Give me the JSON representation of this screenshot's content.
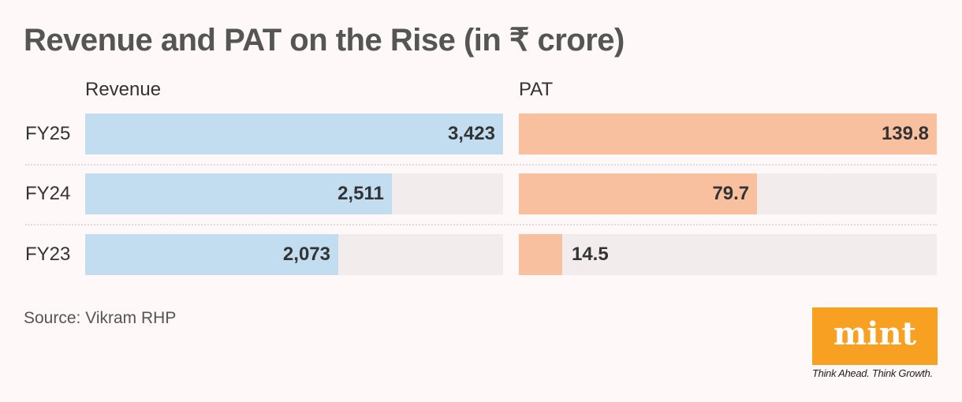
{
  "chart_data": {
    "type": "bar",
    "orientation": "horizontal",
    "title": "Revenue and PAT on the Rise (in ₹ crore)",
    "categories": [
      "FY25",
      "FY24",
      "FY23"
    ],
    "series": [
      {
        "name": "Revenue",
        "values": [
          3423,
          2511,
          2073
        ],
        "labels": [
          "3,423",
          "2,511",
          "2,073"
        ],
        "color": "#c2ddef"
      },
      {
        "name": "PAT",
        "values": [
          139.8,
          79.7,
          14.5
        ],
        "labels": [
          "139.8",
          "79.7",
          "14.5"
        ],
        "color": "#f9c0a0"
      }
    ],
    "track_color": "#f2ecec",
    "source": "Source: Vikram RHP"
  },
  "branding": {
    "logo": "mint",
    "tagline": "Think Ahead. Think Growth.",
    "logo_color": "#f7a021"
  }
}
